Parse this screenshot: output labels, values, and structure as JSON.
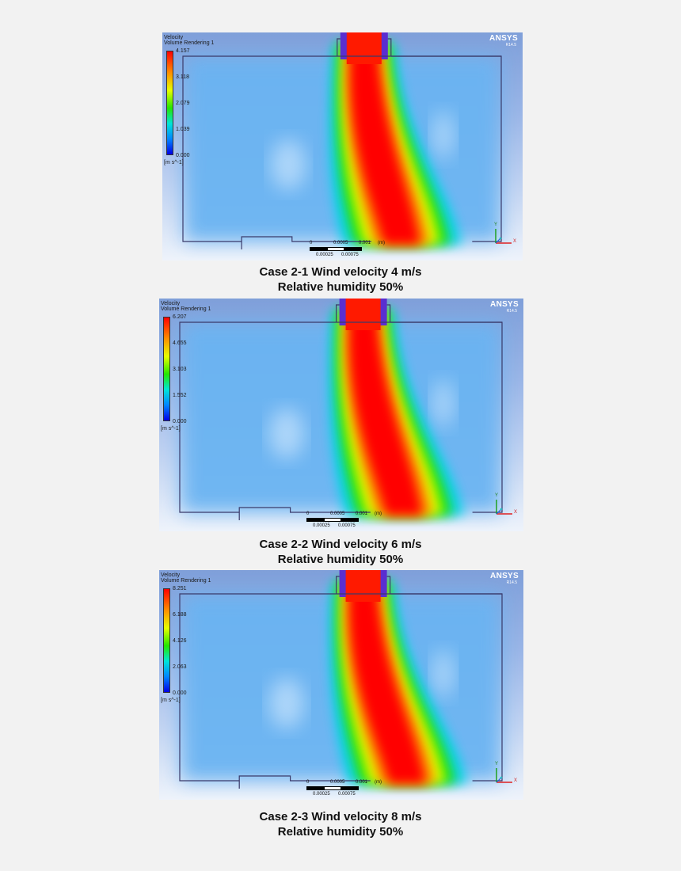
{
  "panels": [
    {
      "legend_title_1": "Velocity",
      "legend_title_2": "Volume Rendering 1",
      "ticks": [
        "4.157",
        "3.118",
        "2.079",
        "1.039",
        "0.000"
      ],
      "unit": "[m s^-1]",
      "brand": "ANSYS",
      "brand_version": "R14.5",
      "scale_top": [
        "0",
        "0.0005",
        "0.001",
        "(m)"
      ],
      "scale_bottom": [
        "0.00025",
        "0.00075"
      ],
      "axis_x": "X",
      "axis_y": "Y",
      "caption_line1": "Case 2-1  Wind velocity 4 m/s",
      "caption_line2": "Relative humidity 50%"
    },
    {
      "legend_title_1": "Velocity",
      "legend_title_2": "Volume Rendering 1",
      "ticks": [
        "6.207",
        "4.655",
        "3.103",
        "1.552",
        "0.000"
      ],
      "unit": "[m s^-1]",
      "brand": "ANSYS",
      "brand_version": "R14.5",
      "scale_top": [
        "0",
        "0.0005",
        "0.001",
        "(m)"
      ],
      "scale_bottom": [
        "0.00025",
        "0.00075"
      ],
      "axis_x": "X",
      "axis_y": "Y",
      "caption_line1": "Case 2-2  Wind velocity 6 m/s",
      "caption_line2": "Relative humidity 50%"
    },
    {
      "legend_title_1": "Velocity",
      "legend_title_2": "Volume Rendering 1",
      "ticks": [
        "8.251",
        "6.188",
        "4.126",
        "2.063",
        "0.000"
      ],
      "unit": "[m s^-1]",
      "brand": "ANSYS",
      "brand_version": "R14.5",
      "scale_top": [
        "0",
        "0.0005",
        "0.001",
        "(m)"
      ],
      "scale_bottom": [
        "0.00025",
        "0.00075"
      ],
      "axis_x": "X",
      "axis_y": "Y",
      "caption_line1": "Case 2-3 Wind velocity 8 m/s",
      "caption_line2": "Relative humidity 50%"
    }
  ],
  "colors": {
    "background": "#f2f2f2",
    "jet_core": "#ff0000",
    "field_low": "#5aa9f0"
  }
}
